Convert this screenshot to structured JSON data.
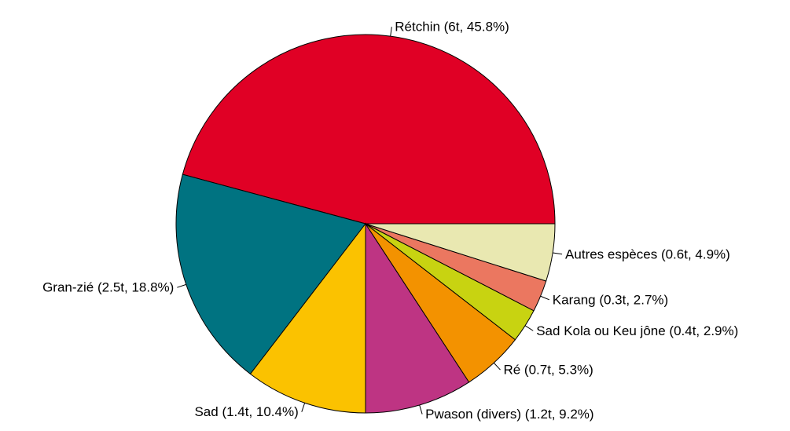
{
  "chart_data": {
    "type": "pie",
    "title": "",
    "start_angle_deg": 0,
    "direction": "counterclockwise",
    "slices": [
      {
        "label": "Rétchin (6t, 45.8%)",
        "name": "Rétchin",
        "tonnes": 6,
        "percent": 45.8,
        "color": "#E00025"
      },
      {
        "label": "Gran-zié (2.5t, 18.8%)",
        "name": "Gran-zié",
        "tonnes": 2.5,
        "percent": 18.8,
        "color": "#007381"
      },
      {
        "label": "Sad (1.4t, 10.4%)",
        "name": "Sad",
        "tonnes": 1.4,
        "percent": 10.4,
        "color": "#FBC200"
      },
      {
        "label": "Pwason (divers) (1.2t, 9.2%)",
        "name": "Pwason (divers)",
        "tonnes": 1.2,
        "percent": 9.2,
        "color": "#BE3483"
      },
      {
        "label": "Ré (0.7t, 5.3%)",
        "name": "Ré",
        "tonnes": 0.7,
        "percent": 5.3,
        "color": "#F39200"
      },
      {
        "label": "Sad Kola ou Keu jône (0.4t, 2.9%)",
        "name": "Sad Kola ou Keu jône",
        "tonnes": 0.4,
        "percent": 2.9,
        "color": "#C8D311"
      },
      {
        "label": "Karang (0.3t, 2.7%)",
        "name": "Karang",
        "tonnes": 0.3,
        "percent": 2.7,
        "color": "#EB7760"
      },
      {
        "label": "Autres espèces (0.6t, 4.9%)",
        "name": "Autres espèces",
        "tonnes": 0.6,
        "percent": 4.9,
        "color": "#E9E8B1"
      }
    ]
  }
}
